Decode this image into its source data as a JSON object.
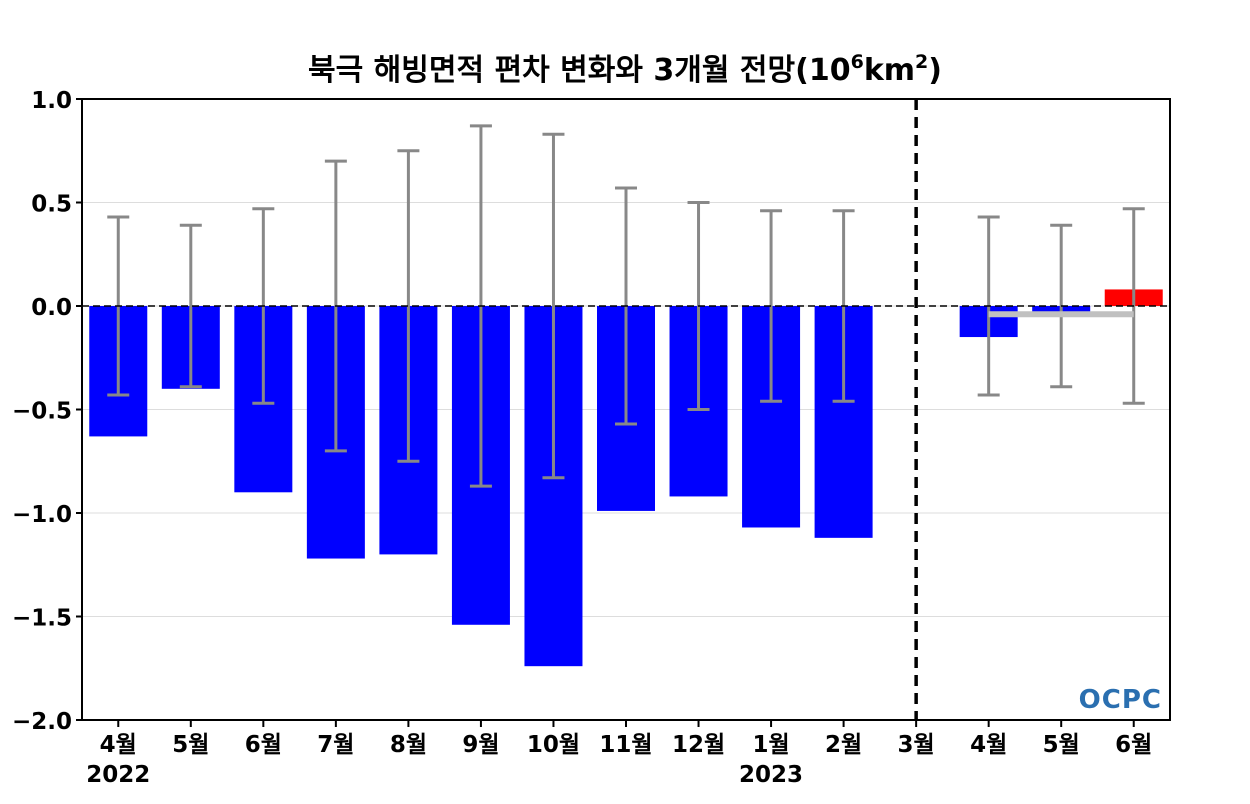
{
  "chart_data": {
    "type": "bar",
    "title_main": "북극 해빙면적 편차 변화와 3개월 전망(10",
    "title_sup1": "6",
    "title_mid": "km",
    "title_sup2": "2",
    "title_end": ")",
    "categories": [
      "4월",
      "5월",
      "6월",
      "7월",
      "8월",
      "9월",
      "10월",
      "11월",
      "12월",
      "1월",
      "2월",
      "3월",
      "4월",
      "5월",
      "6월"
    ],
    "year_labels": [
      {
        "label": "2022",
        "category_index": 0
      },
      {
        "label": "2023",
        "category_index": 9
      }
    ],
    "values": [
      -0.63,
      -0.4,
      -0.9,
      -1.22,
      -1.2,
      -1.54,
      -1.74,
      -0.99,
      -0.92,
      -1.07,
      -1.12,
      0.0,
      -0.15,
      -0.03,
      0.08
    ],
    "error_ranges": [
      0.43,
      0.39,
      0.47,
      0.7,
      0.75,
      0.87,
      0.83,
      0.57,
      0.5,
      0.46,
      0.46,
      null,
      0.43,
      0.39,
      0.47
    ],
    "forecast_climatology": {
      "from_index": 12,
      "to_index": 14,
      "value": -0.04,
      "color": "#c0c0c0"
    },
    "forecast_divider_after_index": 11,
    "colors": {
      "negative": "#0000ff",
      "positive": "#ff0000",
      "error_bar": "#888888",
      "zero_line": "#000000",
      "grid": "#dddddd"
    },
    "ylim": [
      -2.0,
      1.0
    ],
    "yticks": [
      1.0,
      0.5,
      0.0,
      -0.5,
      -1.0,
      -1.5,
      -2.0
    ],
    "ytick_labels": [
      "1.0",
      "0.5",
      "0.0",
      "−0.5",
      "−1.0",
      "−1.5",
      "−2.0"
    ],
    "grid": true,
    "logo": "OCPC"
  }
}
